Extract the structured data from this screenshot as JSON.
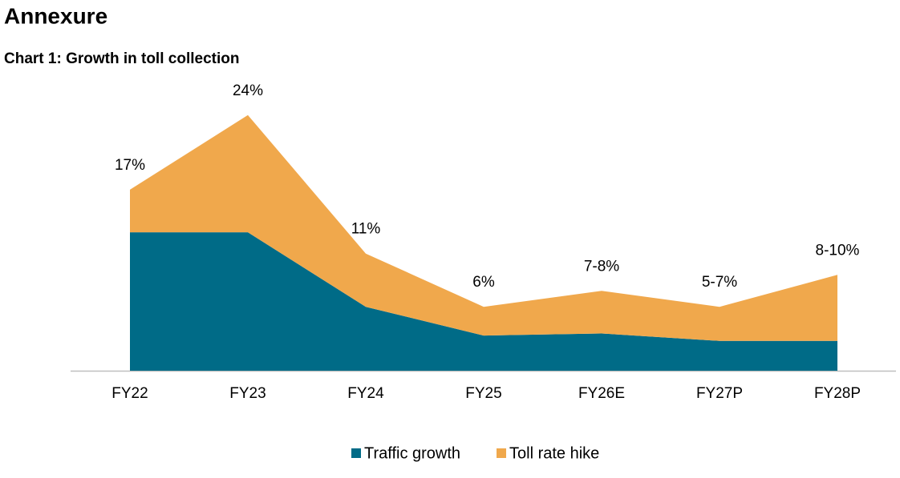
{
  "title": "Annexure",
  "chart_data": {
    "type": "stacked-area",
    "title": "Chart 1: Growth in toll collection",
    "categories": [
      "FY22",
      "FY23",
      "FY24",
      "FY25",
      "FY26E",
      "FY27P",
      "FY28P"
    ],
    "series": [
      {
        "name": "Traffic growth",
        "color": "#006b87",
        "values": [
          13,
          13,
          6,
          3.3,
          3.5,
          2.8,
          2.8
        ]
      },
      {
        "name": "Toll rate hike",
        "color": "#f0a84c",
        "values": [
          4,
          11,
          5,
          2.7,
          4,
          3.2,
          6.2
        ]
      }
    ],
    "total_labels": [
      "17%",
      "24%",
      "11%",
      "6%",
      "7-8%",
      "5-7%",
      "8-10%"
    ],
    "legend": "bottom"
  }
}
